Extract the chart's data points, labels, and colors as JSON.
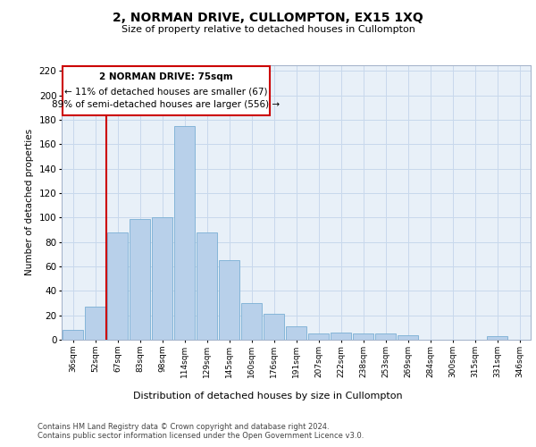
{
  "title": "2, NORMAN DRIVE, CULLOMPTON, EX15 1XQ",
  "subtitle": "Size of property relative to detached houses in Cullompton",
  "xlabel": "Distribution of detached houses by size in Cullompton",
  "ylabel": "Number of detached properties",
  "categories": [
    "36sqm",
    "52sqm",
    "67sqm",
    "83sqm",
    "98sqm",
    "114sqm",
    "129sqm",
    "145sqm",
    "160sqm",
    "176sqm",
    "191sqm",
    "207sqm",
    "222sqm",
    "238sqm",
    "253sqm",
    "269sqm",
    "284sqm",
    "300sqm",
    "315sqm",
    "331sqm",
    "346sqm"
  ],
  "values": [
    8,
    27,
    88,
    99,
    100,
    175,
    88,
    65,
    30,
    21,
    11,
    5,
    6,
    5,
    5,
    4,
    0,
    0,
    0,
    3,
    0
  ],
  "bar_color": "#b8d0ea",
  "bar_edge_color": "#7aafd4",
  "vline_color": "#cc0000",
  "vline_pos": 2.0,
  "annotation_title": "2 NORMAN DRIVE: 75sqm",
  "annotation_line1": "← 11% of detached houses are smaller (67)",
  "annotation_line2": "89% of semi-detached houses are larger (556) →",
  "annotation_box_color": "#cc0000",
  "ylim": [
    0,
    225
  ],
  "yticks": [
    0,
    20,
    40,
    60,
    80,
    100,
    120,
    140,
    160,
    180,
    200,
    220
  ],
  "footer1": "Contains HM Land Registry data © Crown copyright and database right 2024.",
  "footer2": "Contains public sector information licensed under the Open Government Licence v3.0.",
  "background_color": "#ffffff",
  "axes_facecolor": "#e8f0f8",
  "grid_color": "#c8d8ec"
}
